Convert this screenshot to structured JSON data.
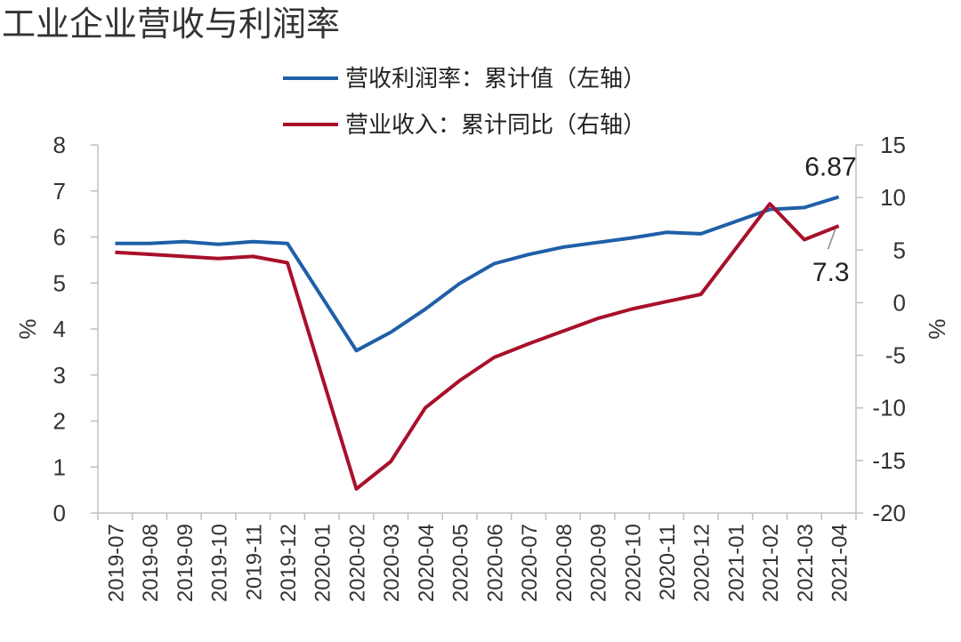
{
  "chart_data": {
    "type": "line",
    "title": "工业企业营收与利润率",
    "categories": [
      "2019-07",
      "2019-08",
      "2019-09",
      "2019-10",
      "2019-11",
      "2019-12",
      "2020-01",
      "2020-02",
      "2020-03",
      "2020-04",
      "2020-05",
      "2020-06",
      "2020-07",
      "2020-08",
      "2020-09",
      "2020-10",
      "2020-11",
      "2020-12",
      "2021-01",
      "2021-02",
      "2021-03",
      "2021-04"
    ],
    "series": [
      {
        "name": "营收利润率：累计值（左轴）",
        "axis": "left",
        "color": "#1f5fa8",
        "values": [
          5.86,
          5.86,
          5.9,
          5.84,
          5.9,
          5.86,
          null,
          3.53,
          3.93,
          4.43,
          4.99,
          5.42,
          5.62,
          5.78,
          5.88,
          5.98,
          6.1,
          6.07,
          null,
          6.6,
          6.64,
          6.87
        ]
      },
      {
        "name": "营业收入：累计同比（右轴）",
        "axis": "right",
        "color": "#a8102a",
        "values": [
          4.8,
          4.6,
          4.4,
          4.2,
          4.4,
          3.8,
          null,
          -17.7,
          -15.1,
          -10.0,
          -7.4,
          -5.2,
          -3.9,
          -2.7,
          -1.5,
          -0.6,
          0.1,
          0.8,
          null,
          9.4,
          6.0,
          7.3
        ]
      }
    ],
    "ylabel": "%",
    "y2label": "%",
    "ylim": [
      0,
      8
    ],
    "y2lim": [
      -20,
      15
    ],
    "yticks": [
      "0",
      "1",
      "2",
      "3",
      "4",
      "5",
      "6",
      "7",
      "8"
    ],
    "y2ticks": [
      "-20",
      "-15",
      "-10",
      "-5",
      "0",
      "5",
      "10",
      "15"
    ],
    "annotations": [
      {
        "text": "6.87",
        "series": 0,
        "category": "2021-04"
      },
      {
        "text": "7.3",
        "series": 1,
        "category": "2021-04"
      }
    ],
    "grid": false,
    "legend_position": "top-center"
  }
}
